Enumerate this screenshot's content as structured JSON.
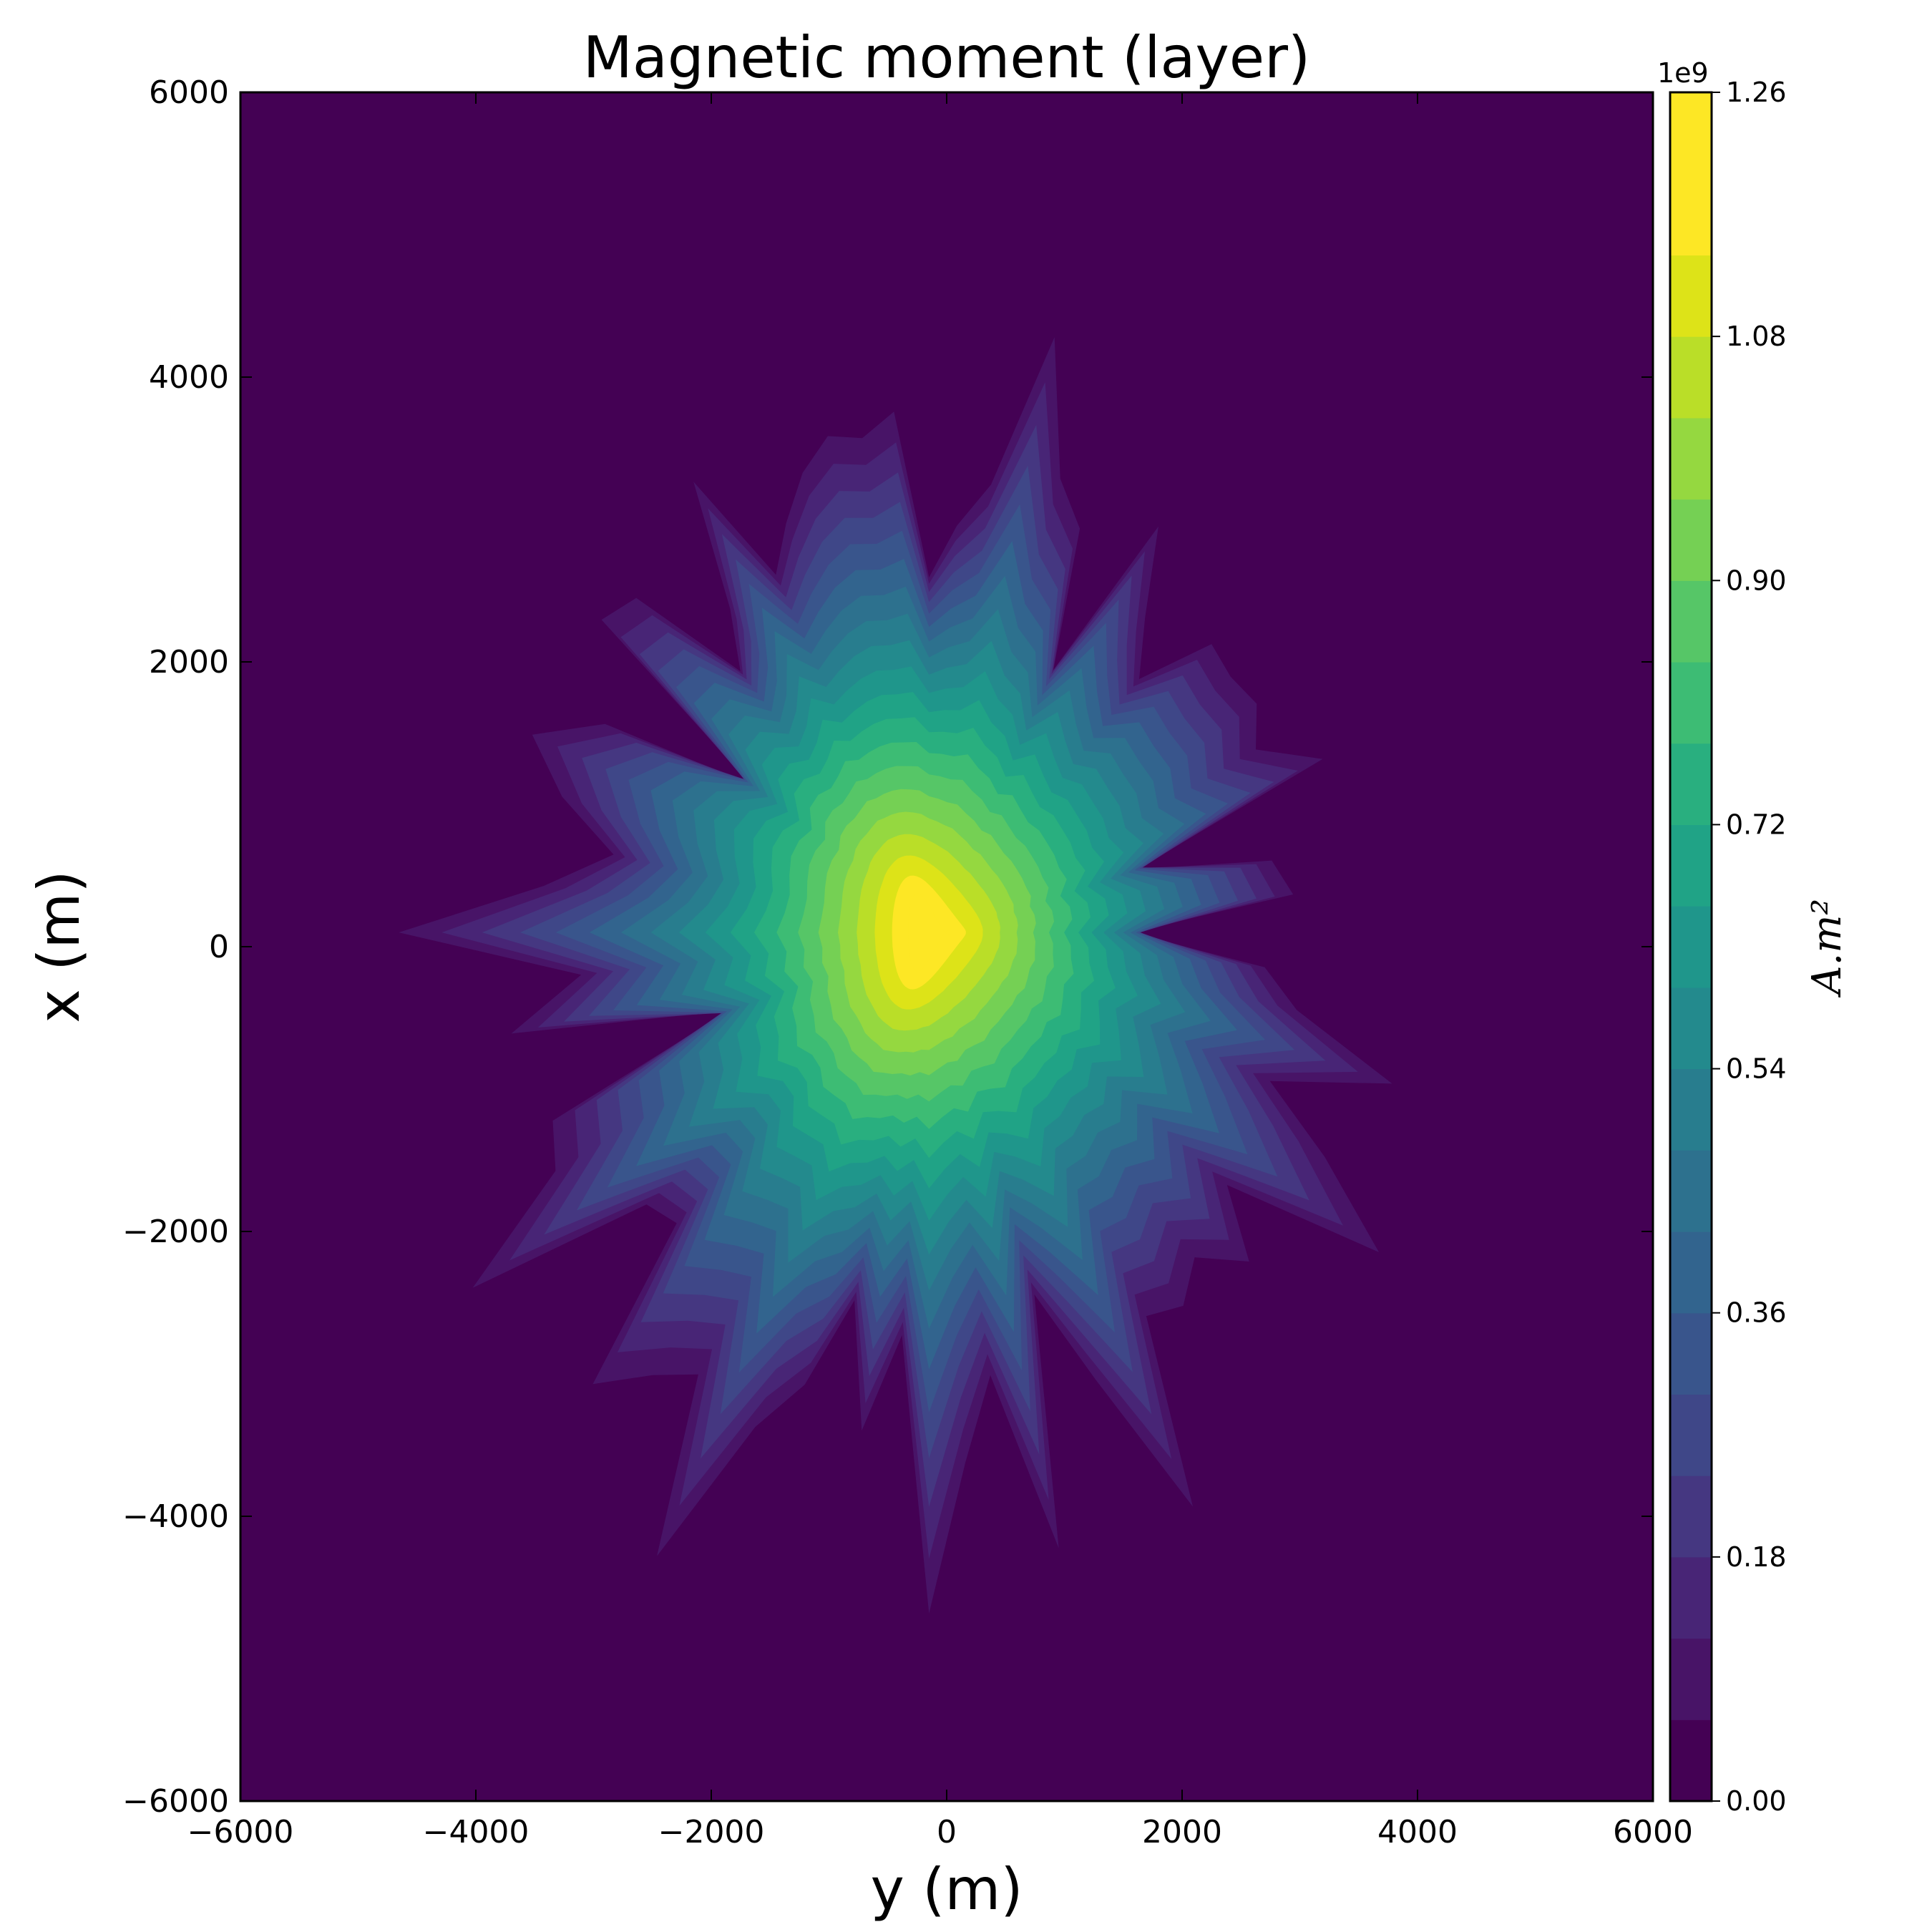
{
  "chart_data": {
    "type": "contour",
    "title": "Magnetic moment (layer)",
    "xlabel": "y (m)",
    "ylabel": "x (m)",
    "xlim": [
      -6000,
      6000
    ],
    "ylim": [
      -6000,
      6000
    ],
    "x_ticks": [
      -6000,
      -4000,
      -2000,
      0,
      2000,
      4000,
      6000
    ],
    "y_ticks": [
      -6000,
      -4000,
      -2000,
      0,
      2000,
      4000,
      6000
    ],
    "x_tick_labels": [
      "−6000",
      "−4000",
      "−2000",
      "0",
      "2000",
      "4000",
      "6000"
    ],
    "y_tick_labels": [
      "−6000",
      "−4000",
      "−2000",
      "0",
      "2000",
      "4000",
      "6000"
    ],
    "grid": false,
    "colormap": "viridis",
    "peak": {
      "y": -150,
      "x": 100,
      "value": 1260000000.0
    },
    "colorbar": {
      "label": "A.m²",
      "multiplier_label": "1e9",
      "range": [
        0,
        1.26
      ],
      "levels": 21,
      "ticks": [
        0.0,
        0.18,
        0.36,
        0.54,
        0.72,
        0.9,
        1.08,
        1.26
      ],
      "tick_labels": [
        "0.00",
        "0.18",
        "0.36",
        "0.54",
        "0.72",
        "0.90",
        "1.08",
        "1.26"
      ],
      "colors": [
        "#440154",
        "#481467",
        "#482576",
        "#453781",
        "#3f4788",
        "#39558c",
        "#32648e",
        "#2d718e",
        "#287d8e",
        "#238a8d",
        "#1f968b",
        "#20a386",
        "#29af7f",
        "#3dbc74",
        "#56c667",
        "#75d054",
        "#95d840",
        "#bade28",
        "#dde318",
        "#fde725",
        "#fde725"
      ]
    }
  }
}
